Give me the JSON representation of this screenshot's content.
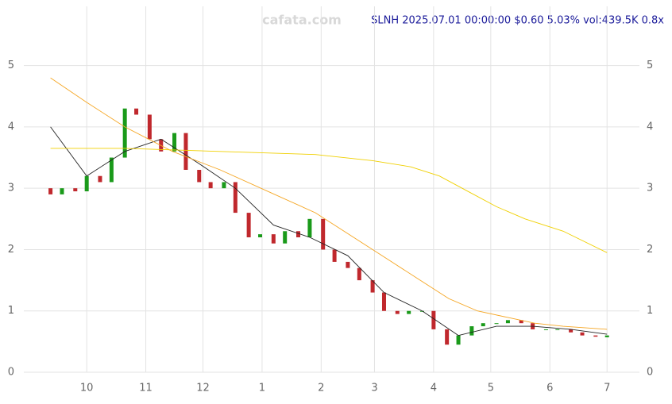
{
  "chart_data": {
    "type": "candlestick",
    "title": "SLNH 2025.07.01 00:00:00 $0.60 5.03% vol:439.5K 0.8x",
    "watermark": "cafata.com",
    "x": [
      11,
      17,
      24,
      30,
      37,
      43,
      50,
      56,
      63,
      69,
      76,
      82,
      89,
      95,
      102,
      108,
      115,
      121,
      128,
      134,
      141,
      147,
      154,
      160,
      167,
      173,
      180,
      186,
      193,
      199,
      206,
      212,
      219,
      225,
      232,
      238,
      245,
      251,
      258,
      264,
      271,
      277,
      284,
      290,
      297,
      303
    ],
    "open": [
      3.0,
      2.9,
      3.0,
      2.95,
      3.2,
      3.1,
      3.5,
      4.3,
      4.2,
      3.8,
      3.6,
      3.9,
      3.3,
      3.1,
      3.0,
      3.1,
      2.6,
      2.2,
      2.25,
      2.1,
      2.3,
      2.2,
      2.5,
      2.0,
      1.8,
      1.7,
      1.5,
      1.3,
      1.0,
      0.95,
      1.0,
      1.0,
      0.7,
      0.45,
      0.6,
      0.75,
      0.8,
      0.8,
      0.85,
      0.8,
      0.7,
      0.7,
      0.7,
      0.65,
      0.6,
      0.57
    ],
    "close": [
      2.9,
      3.0,
      2.95,
      3.2,
      3.1,
      3.5,
      4.3,
      4.2,
      3.8,
      3.6,
      3.9,
      3.3,
      3.1,
      3.0,
      3.1,
      2.6,
      2.2,
      2.25,
      2.1,
      2.3,
      2.2,
      2.5,
      2.0,
      1.8,
      1.7,
      1.5,
      1.3,
      1.0,
      0.95,
      1.0,
      1.0,
      0.7,
      0.45,
      0.6,
      0.75,
      0.8,
      0.8,
      0.85,
      0.8,
      0.7,
      0.7,
      0.7,
      0.65,
      0.6,
      0.58,
      0.6
    ],
    "up_color": "#1a9a1a",
    "down_color": "#c0282d",
    "lines": [
      {
        "color": "#222222",
        "x": [
          11,
          30,
          50,
          69,
          89,
          108,
          128,
          147,
          167,
          186,
          206,
          225,
          245,
          264,
          284,
          303
        ],
        "values": [
          4.0,
          3.2,
          3.6,
          3.8,
          3.4,
          3.0,
          2.4,
          2.2,
          1.9,
          1.3,
          1.0,
          0.6,
          0.75,
          0.75,
          0.7,
          0.62
        ]
      },
      {
        "color": "#f5a623",
        "x": [
          11,
          30,
          50,
          75,
          100,
          125,
          150,
          170,
          190,
          205,
          220,
          235,
          250,
          265,
          280,
          303
        ],
        "values": [
          4.8,
          4.4,
          4.0,
          3.6,
          3.3,
          2.95,
          2.6,
          2.2,
          1.8,
          1.5,
          1.2,
          1.0,
          0.9,
          0.8,
          0.75,
          0.7
        ]
      },
      {
        "color": "#f0d000",
        "x": [
          11,
          50,
          100,
          150,
          180,
          200,
          215,
          230,
          245,
          260,
          280,
          303
        ],
        "values": [
          3.65,
          3.65,
          3.6,
          3.55,
          3.45,
          3.35,
          3.2,
          2.95,
          2.7,
          2.5,
          2.3,
          1.95
        ]
      }
    ],
    "xlim": [
      -3,
      320
    ],
    "ylim": [
      0,
      5.5
    ],
    "xticks": [
      {
        "value": 30,
        "label": "10"
      },
      {
        "value": 61,
        "label": "11"
      },
      {
        "value": 91,
        "label": "12"
      },
      {
        "value": 122,
        "label": "1"
      },
      {
        "value": 153,
        "label": "2"
      },
      {
        "value": 181,
        "label": "3"
      },
      {
        "value": 212,
        "label": "4"
      },
      {
        "value": 242,
        "label": "5"
      },
      {
        "value": 273,
        "label": "6"
      },
      {
        "value": 303,
        "label": "7"
      }
    ],
    "yticks": [
      0,
      1,
      2,
      3,
      4,
      5
    ],
    "grid": true
  }
}
